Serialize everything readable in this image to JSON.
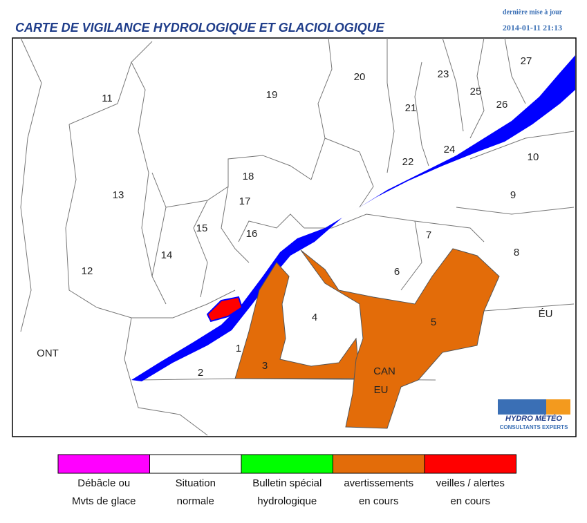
{
  "header": {
    "title": "CARTE DE VIGILANCE HYDROLOGIQUE ET GLACIOLOGIQUE",
    "update_label": "dernière mise à jour",
    "update_time": "2014-01-11 21:13"
  },
  "map": {
    "regions": [
      "11",
      "19",
      "20",
      "23",
      "27",
      "25",
      "26",
      "21",
      "24",
      "22",
      "10",
      "18",
      "13",
      "17",
      "9",
      "15",
      "16",
      "7",
      "14",
      "8",
      "12",
      "6",
      "4",
      "5",
      "1",
      "3",
      "2"
    ],
    "places": [
      "ONT",
      "ÉU",
      "CAN",
      "EU"
    ],
    "logo": {
      "name": "HYDRO MÉTÉO",
      "tagline": "CONSULTANTS EXPERTS"
    }
  },
  "legend": [
    {
      "lines": [
        "Débâcle ou",
        "Mvts de glace"
      ],
      "color": "#ff00ff"
    },
    {
      "lines": [
        "Situation",
        "normale"
      ],
      "color": "#ffffff"
    },
    {
      "lines": [
        "Bulletin spécial",
        "hydrologique"
      ],
      "color": "#00ff00"
    },
    {
      "lines": [
        "avertissements",
        "en cours"
      ],
      "color": "#e36c09"
    },
    {
      "lines": [
        "veilles / alertes",
        "en cours"
      ],
      "color": "#ff0000"
    }
  ]
}
